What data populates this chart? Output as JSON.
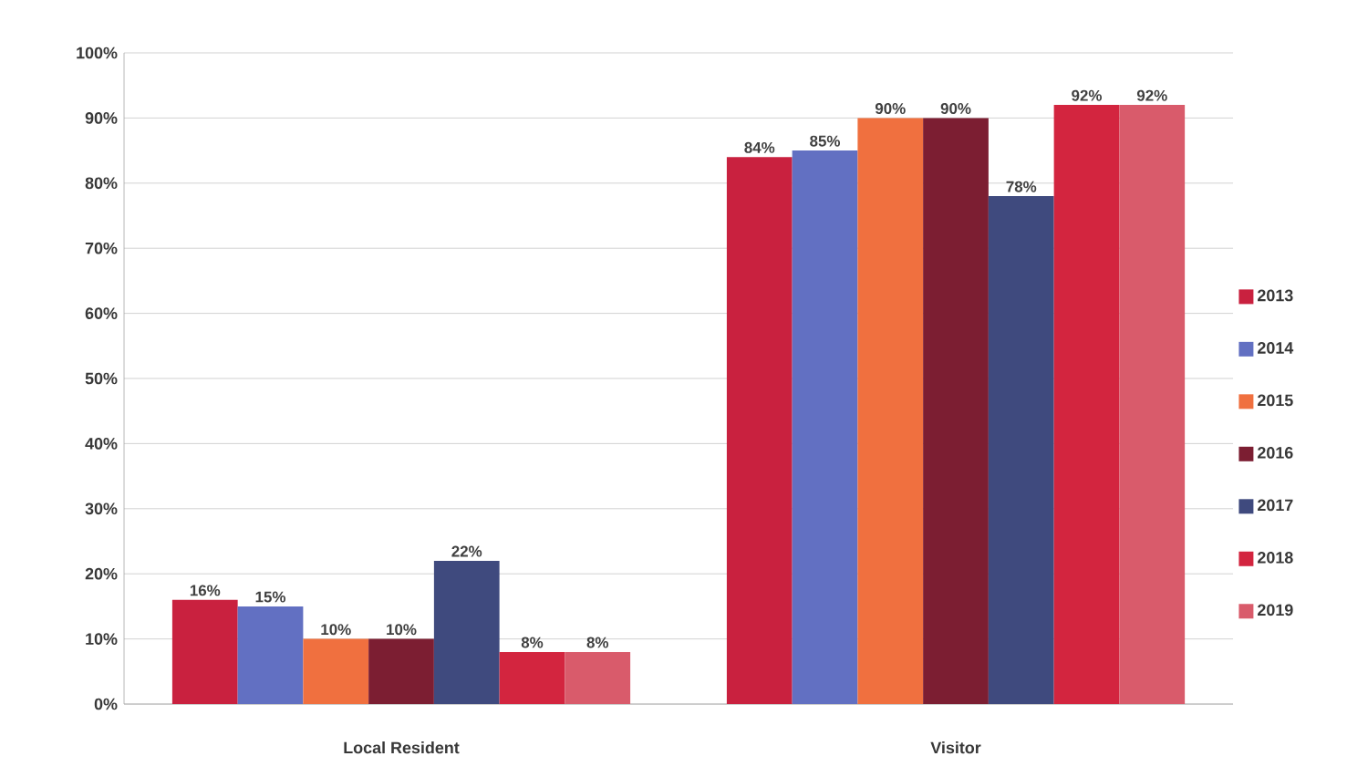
{
  "chart_data": {
    "type": "bar",
    "categories": [
      "Local Resident",
      "Visitor"
    ],
    "series": [
      {
        "name": "2013",
        "color": "#c9213f",
        "values": [
          16,
          84
        ],
        "value_labels": [
          "16%",
          "84%"
        ]
      },
      {
        "name": "2014",
        "color": "#6270c2",
        "values": [
          15,
          85
        ],
        "value_labels": [
          "15%",
          "85%"
        ]
      },
      {
        "name": "2015",
        "color": "#f0703f",
        "values": [
          10,
          90
        ],
        "value_labels": [
          "10%",
          "90%"
        ]
      },
      {
        "name": "2016",
        "color": "#7c1e32",
        "values": [
          10,
          90
        ],
        "value_labels": [
          "10%",
          "90%"
        ]
      },
      {
        "name": "2017",
        "color": "#3f4a7e",
        "values": [
          22,
          78
        ],
        "value_labels": [
          "22%",
          "78%"
        ]
      },
      {
        "name": "2018",
        "color": "#d3253f",
        "values": [
          8,
          92
        ],
        "value_labels": [
          "8%",
          "92%"
        ]
      },
      {
        "name": "2019",
        "color": "#d95b6b",
        "values": [
          8,
          92
        ],
        "value_labels": [
          "8%",
          "92%"
        ]
      }
    ],
    "ylim": [
      0,
      100
    ],
    "yticks": [
      {
        "value": 0,
        "label": "0%"
      },
      {
        "value": 10,
        "label": "10%"
      },
      {
        "value": 20,
        "label": "20%"
      },
      {
        "value": 30,
        "label": "30%"
      },
      {
        "value": 40,
        "label": "40%"
      },
      {
        "value": 50,
        "label": "50%"
      },
      {
        "value": 60,
        "label": "60%"
      },
      {
        "value": 70,
        "label": "70%"
      },
      {
        "value": 80,
        "label": "80%"
      },
      {
        "value": 90,
        "label": "90%"
      },
      {
        "value": 100,
        "label": "100%"
      }
    ],
    "grid": "y",
    "legend": "right"
  }
}
